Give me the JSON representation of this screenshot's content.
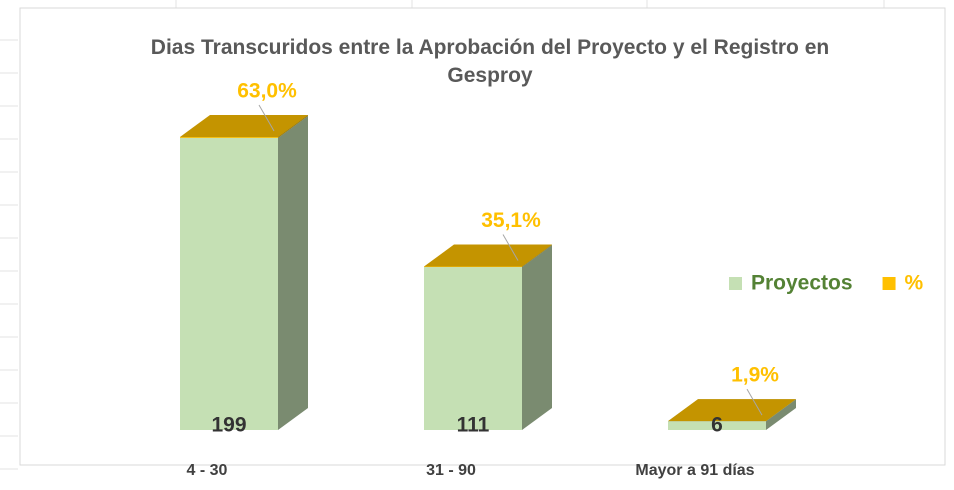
{
  "chart_data": {
    "type": "bar3d_stacked",
    "title": "Dias Transcuridos entre la Aprobación del Proyecto y el Registro en Gesproy",
    "categories": [
      "4 - 30",
      "31 - 90",
      "Mayor a 91 días"
    ],
    "series": [
      {
        "name": "Proyectos",
        "color": "#c5e0b4",
        "values": [
          199,
          111,
          6
        ]
      },
      {
        "name": "%",
        "color": "#ffc000",
        "values": [
          0.63,
          0.351,
          0.019
        ],
        "value_labels": [
          "63,0%",
          "35,1%",
          "1,9%"
        ]
      }
    ],
    "ylim": [
      0,
      250
    ],
    "legend": "right"
  }
}
